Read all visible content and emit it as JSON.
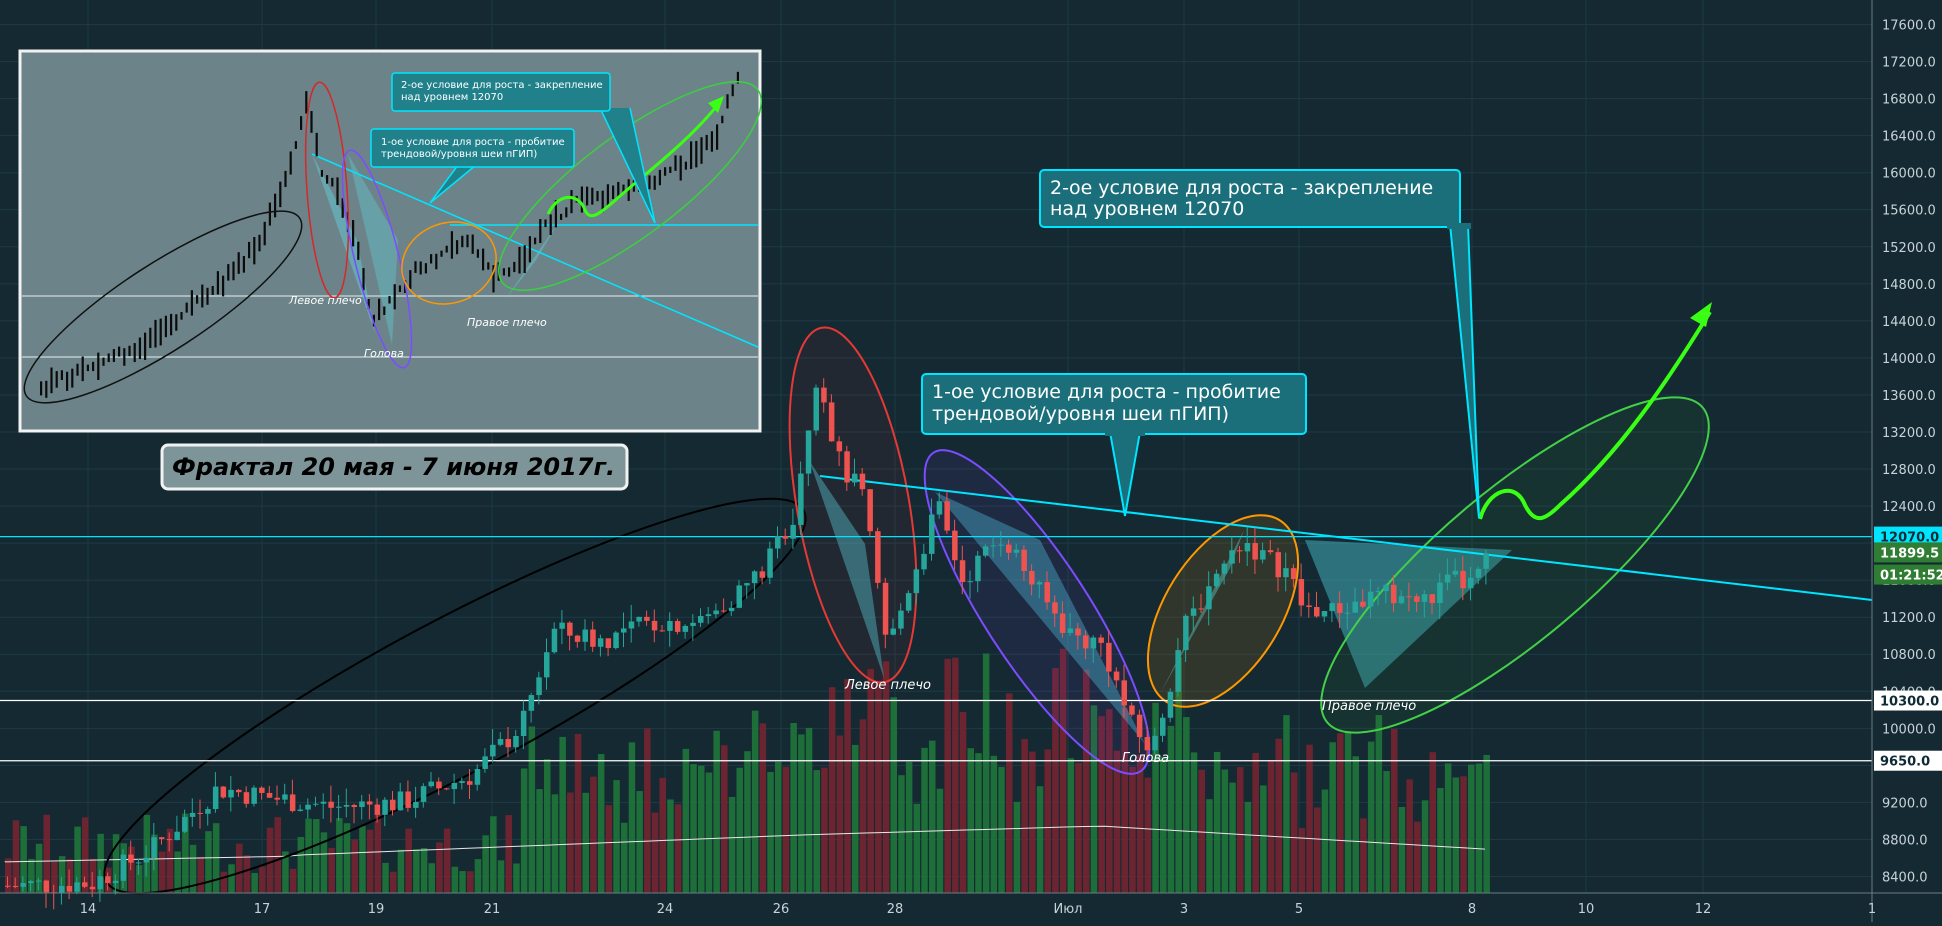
{
  "chart_data": {
    "type": "candlestick",
    "y_axis": {
      "range": [
        8200,
        17800
      ],
      "tick_labels": [
        "17600.0",
        "17200.0",
        "16800.0",
        "16400.0",
        "16000.0",
        "15600.0",
        "15200.0",
        "14800.0",
        "14400.0",
        "14000.0",
        "13600.0",
        "13200.0",
        "12800.0",
        "12400.0",
        "12000.0",
        "11600.0",
        "11200.0",
        "10800.0",
        "10400.0",
        "10000.0",
        "9600.0",
        "9200.0",
        "8800.0",
        "8400.0"
      ]
    },
    "x_axis": {
      "tick_labels": [
        "14",
        "17",
        "19",
        "21",
        "24",
        "26",
        "28",
        "Июл",
        "3",
        "5",
        "8",
        "10",
        "12",
        "1"
      ]
    },
    "price_tags": [
      {
        "text": "12070.0",
        "value": 12070,
        "color": "#00e5ff",
        "text_color": "#0e2a33"
      },
      {
        "text": "11899.5",
        "value": 11899.5,
        "color": "#2e7d32",
        "text_color": "#ffffff"
      },
      {
        "text": "01:21:52",
        "value": 11660,
        "color": "#2e7d32",
        "text_color": "#ffffff"
      },
      {
        "text": "10300.0",
        "value": 10300,
        "color": "#ffffff",
        "text_color": "#0e2a33"
      },
      {
        "text": "9650.0",
        "value": 9650,
        "color": "#ffffff",
        "text_color": "#0e2a33"
      }
    ],
    "horizontal_levels": [
      {
        "value": 12070,
        "color": "#00e5ff"
      },
      {
        "value": 10300,
        "color": "#ffffff"
      },
      {
        "value": 9650,
        "color": "#ffffff"
      }
    ],
    "annotations": {
      "callout1": [
        "1-ое условие для роста - пробитие",
        "трендовой/уровня шеи пГИП)"
      ],
      "callout2": [
        "2-ое условие для роста - закрепление",
        "над уровнем 12070"
      ],
      "left_shoulder": "Левое плечо",
      "head": "Голова",
      "right_shoulder": "Правое плечо"
    },
    "inset": {
      "title": "Фрактал 20 мая - 7 июня 2017г.",
      "callout1": [
        "1-ое условие для роста - пробитие",
        "трендовой/уровня шеи пГИП)"
      ],
      "callout2": [
        "2-ое условие для роста - закрепление",
        "над уровнем 12070"
      ],
      "left_shoulder": "Левое плечо",
      "head": "Голова",
      "right_shoulder": "Правое плечо"
    },
    "colors": {
      "up": "#26a69a",
      "down": "#ef5350",
      "background": "#142932",
      "neckline": "#00e5ff"
    }
  }
}
